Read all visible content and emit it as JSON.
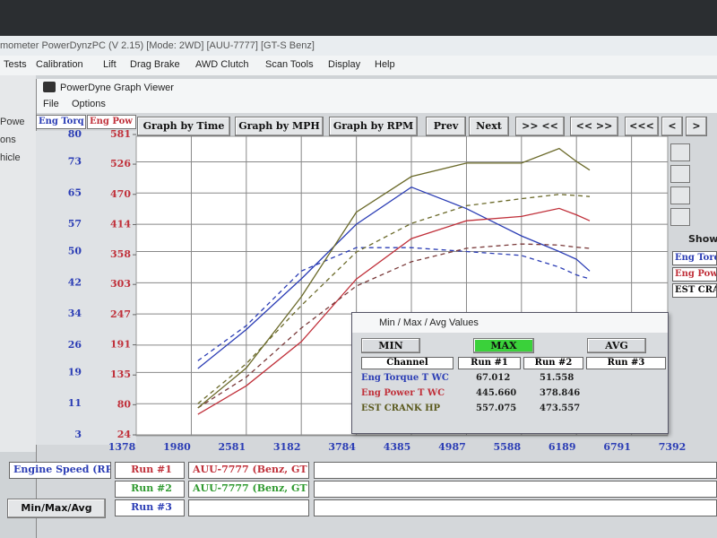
{
  "app": {
    "title": "mometer PowerDynzPC (V 2.15) [Mode: 2WD] [AUU-7777] [GT-S Benz]",
    "menu": [
      "Tests",
      "Calibration",
      "Lift",
      "Drag Brake",
      "AWD Clutch",
      "Scan Tools",
      "Display",
      "Help"
    ],
    "side_labels": [
      "Powe",
      "ons",
      "hicle"
    ]
  },
  "window": {
    "title": "PowerDyne Graph Viewer",
    "menu": [
      "File",
      "Options"
    ],
    "buttons": [
      "Graph by Time",
      "Graph by MPH",
      "Graph by RPM",
      "Prev",
      "Next",
      ">> <<",
      "<< >>",
      "<<<",
      "<",
      ">"
    ]
  },
  "chart_data": {
    "type": "line",
    "ylabel": "Eng Torq",
    "y2label": "Eng Pow",
    "x": [
      2052,
      2581,
      3182,
      3784,
      4385,
      4987,
      5588,
      6000,
      6189,
      6334
    ],
    "xlim": [
      1378,
      7392
    ],
    "xticks": [
      1378,
      1980,
      2581,
      3182,
      3784,
      4385,
      4987,
      5588,
      6189,
      6791,
      7392
    ],
    "ylim": [
      3,
      80
    ],
    "yticks": [
      80,
      73,
      65,
      57,
      50,
      42,
      34,
      26,
      19,
      11,
      3
    ],
    "y2lim": [
      24,
      581
    ],
    "y2ticks": [
      581,
      526,
      470,
      414,
      358,
      303,
      247,
      191,
      135,
      80,
      24
    ],
    "grid": true,
    "series": [
      {
        "color": "#2b3db5",
        "dashed": false,
        "values": [
          20,
          30,
          43,
          57,
          66.5,
          61,
          54,
          50,
          48,
          45
        ]
      },
      {
        "color": "#2b3db5",
        "dashed": true,
        "values": [
          22,
          31,
          45,
          51,
          51,
          50,
          49,
          46,
          44,
          43
        ]
      },
      {
        "color": "#c0303a",
        "dashed": false,
        "axis": "y2",
        "values": [
          62,
          115,
          197,
          313,
          388,
          421,
          429,
          444,
          432,
          421
        ]
      },
      {
        "color": "#7a3a3a",
        "dashed": true,
        "axis": "y2",
        "values": [
          74,
          131,
          222,
          300,
          345,
          370,
          378,
          376,
          372,
          370
        ]
      },
      {
        "color": "#6b6a2a",
        "dashed": false,
        "axis": "y2",
        "values": [
          74,
          148,
          280,
          437,
          503,
          528,
          528,
          555,
          531,
          515
        ]
      },
      {
        "color": "#6b6a2a",
        "dashed": true,
        "axis": "y2",
        "values": [
          82,
          156,
          264,
          363,
          416,
          449,
          462,
          470,
          468,
          466
        ]
      }
    ]
  },
  "dialog": {
    "title": "Min / Max / Avg Values",
    "buttons": [
      "MIN",
      "MAX",
      "AVG"
    ],
    "headers": [
      "Channel",
      "Run #1",
      "Run #2",
      "Run #3"
    ],
    "rows": [
      [
        "Eng Torque T WC",
        "67.012",
        "51.558"
      ],
      [
        "Eng Power T WC",
        "445.660",
        "378.846"
      ],
      [
        "EST CRANK HP",
        "557.075",
        "473.557"
      ]
    ]
  },
  "bottom": {
    "channel": "Engine Speed (RP",
    "button": "Min/Max/Avg",
    "runs": [
      {
        "label": "Run #1",
        "vehicle": "AUU-7777 (Benz, GT"
      },
      {
        "label": "Run #2",
        "vehicle": "AUU-7777 (Benz, GT"
      },
      {
        "label": "Run #3"
      }
    ]
  },
  "side_panel": {
    "show": "Show",
    "channels": [
      "Eng Torq",
      "Eng Pow",
      "EST CRA"
    ]
  }
}
